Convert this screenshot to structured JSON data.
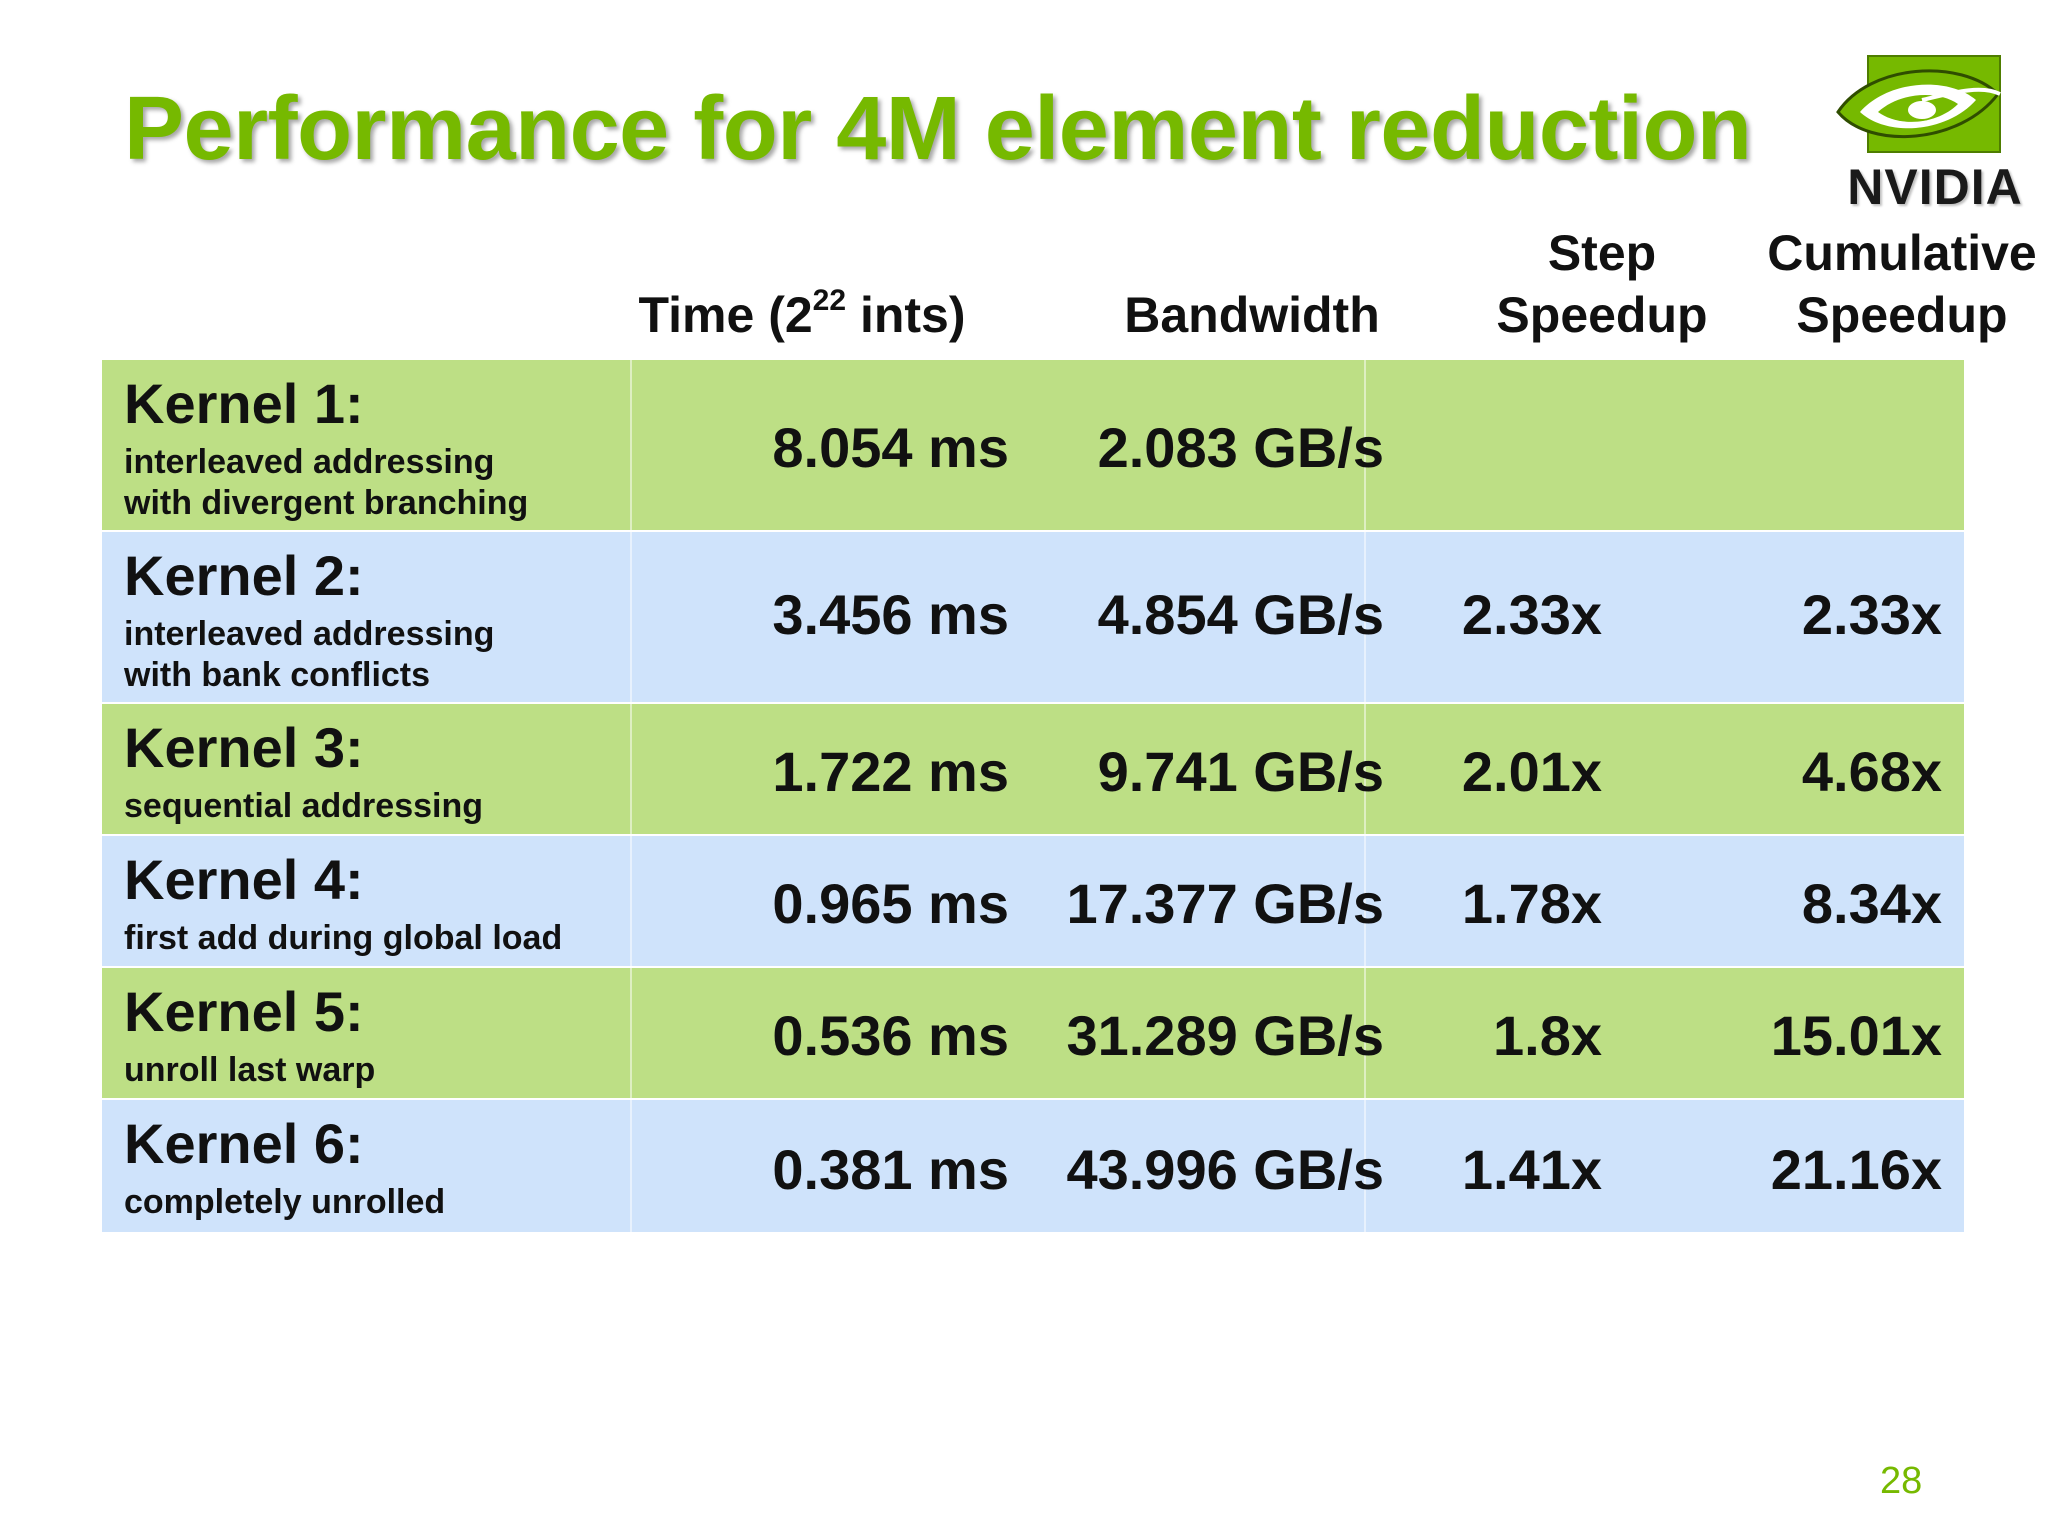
{
  "slide": {
    "title": "Performance for 4M element reduction",
    "page_number": "28",
    "logo_text": "NVIDIA",
    "accent_color": "#76b900"
  },
  "table": {
    "headers": {
      "time": "Time (2",
      "time_exp": "22",
      "time_tail": " ints)",
      "bandwidth": "Bandwidth",
      "step_speedup_1": "Step",
      "step_speedup_2": "Speedup",
      "cumulative_speedup_1": "Cumulative",
      "cumulative_speedup_2": "Speedup"
    },
    "rows": [
      {
        "kernel": "Kernel 1:",
        "desc1": "interleaved addressing",
        "desc2": "with divergent branching",
        "time": "8.054 ms",
        "bandwidth": "2.083 GB/s",
        "step": "",
        "cumulative": "",
        "color": "#bddf85"
      },
      {
        "kernel": "Kernel 2:",
        "desc1": "interleaved addressing",
        "desc2": "with bank conflicts",
        "time": "3.456 ms",
        "bandwidth": "4.854 GB/s",
        "step": "2.33x",
        "cumulative": "2.33x",
        "color": "#cfe3fb"
      },
      {
        "kernel": "Kernel 3:",
        "desc1": "sequential addressing",
        "desc2": "",
        "time": "1.722 ms",
        "bandwidth": "9.741 GB/s",
        "step": "2.01x",
        "cumulative": "4.68x",
        "color": "#bddf85"
      },
      {
        "kernel": "Kernel 4:",
        "desc1": "first add during global load",
        "desc2": "",
        "time": "0.965 ms",
        "bandwidth": "17.377 GB/s",
        "step": "1.78x",
        "cumulative": "8.34x",
        "color": "#cfe3fb"
      },
      {
        "kernel": "Kernel 5:",
        "desc1": "unroll last warp",
        "desc2": "",
        "time": "0.536 ms",
        "bandwidth": "31.289 GB/s",
        "step": "1.8x",
        "cumulative": "15.01x",
        "color": "#bddf85"
      },
      {
        "kernel": "Kernel 6:",
        "desc1": "completely unrolled",
        "desc2": "",
        "time": "0.381 ms",
        "bandwidth": "43.996 GB/s",
        "step": "1.41x",
        "cumulative": "21.16x",
        "color": "#cfe3fb"
      }
    ]
  }
}
